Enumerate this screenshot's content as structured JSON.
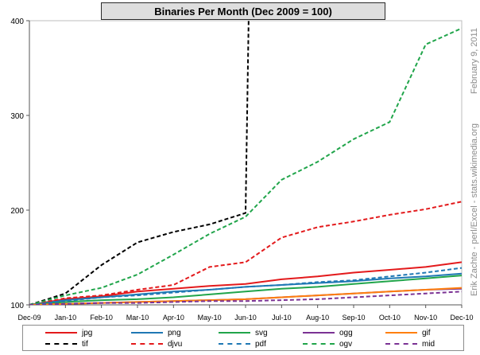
{
  "chart_data": {
    "type": "line",
    "title": "Binaries Per Month  (Dec 2009 = 100)",
    "xlabel": "",
    "ylabel": "",
    "x": [
      "Dec-09",
      "Jan-10",
      "Feb-10",
      "Mar-10",
      "Apr-10",
      "May-10",
      "Jun-10",
      "Jul-10",
      "Aug-10",
      "Sep-10",
      "Oct-10",
      "Nov-10",
      "Dec-10"
    ],
    "ylim": [
      100,
      400
    ],
    "yticks": [
      "100",
      "200",
      "300",
      "400"
    ],
    "grid": false,
    "legend_position": "bottom",
    "series": [
      {
        "name": "jpg",
        "color": "#e31a1c",
        "dash": "solid",
        "values": [
          100,
          106,
          109,
          114,
          117,
          120,
          122,
          127,
          130,
          134,
          137,
          140,
          145
        ]
      },
      {
        "name": "png",
        "color": "#1f78b4",
        "dash": "solid",
        "values": [
          100,
          105,
          108,
          111,
          114,
          116,
          119,
          121,
          123,
          125,
          128,
          130,
          133
        ]
      },
      {
        "name": "svg",
        "color": "#21a54b",
        "dash": "solid",
        "values": [
          100,
          103,
          105,
          106,
          108,
          111,
          114,
          117,
          119,
          122,
          125,
          128,
          131
        ]
      },
      {
        "name": "ogg",
        "color": "#7b3294",
        "dash": "solid",
        "values": [
          100,
          101,
          102,
          103,
          104,
          105,
          106,
          108,
          110,
          112,
          114,
          116,
          117
        ]
      },
      {
        "name": "gif",
        "color": "#ff7f0e",
        "dash": "solid",
        "values": [
          100,
          101,
          102,
          103,
          104,
          105,
          106,
          108,
          110,
          112,
          114,
          116,
          118
        ]
      },
      {
        "name": "tif",
        "color": "#000000",
        "dash": "dashed",
        "values": [
          100,
          112,
          142,
          166,
          177,
          185,
          197,
          null,
          null,
          null,
          null,
          null,
          null
        ],
        "offscale": {
          "from": 6,
          "to_x": 6.1
        }
      },
      {
        "name": "djvu",
        "color": "#e31a1c",
        "dash": "dashed",
        "values": [
          100,
          107,
          110,
          116,
          121,
          140,
          145,
          171,
          182,
          188,
          195,
          201,
          209
        ]
      },
      {
        "name": "pdf",
        "color": "#1f78b4",
        "dash": "dashed",
        "values": [
          100,
          104,
          108,
          110,
          113,
          116,
          119,
          121,
          124,
          126,
          130,
          134,
          139
        ]
      },
      {
        "name": "ogv",
        "color": "#21a54b",
        "dash": "dashed",
        "values": [
          100,
          110,
          118,
          132,
          153,
          175,
          193,
          232,
          251,
          275,
          293,
          375,
          392
        ]
      },
      {
        "name": "mid",
        "color": "#7b3294",
        "dash": "dashed",
        "values": [
          100,
          101,
          102,
          102,
          103,
          104,
          104,
          105,
          106,
          108,
          110,
          112,
          114
        ]
      }
    ]
  },
  "credits": {
    "date": "February 9, 2011",
    "author": "Erik Zachte - perl/Excel - stats.wikimedia.org"
  }
}
